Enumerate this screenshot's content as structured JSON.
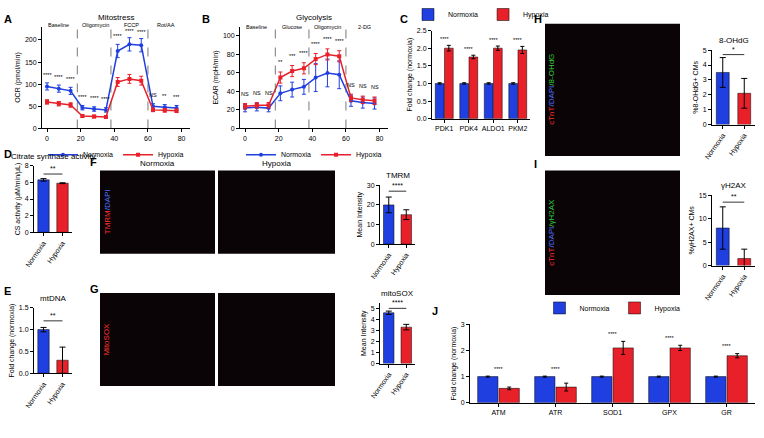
{
  "chart_data": [
    {
      "panel": "A",
      "type": "line",
      "title": "Mitostress",
      "y_label": "OCR (pmol/min)",
      "x": [
        0,
        7,
        14,
        21,
        28,
        35,
        42,
        49,
        56,
        63,
        70,
        77
      ],
      "xlim": [
        -3,
        85
      ],
      "xticks": [
        0,
        20,
        40,
        60,
        80
      ],
      "ylim": [
        0,
        230
      ],
      "yticks": [
        0,
        50,
        100,
        150,
        200
      ],
      "series": [
        {
          "name": "Normoxia",
          "color": "#1f3fe0",
          "marker": "circle",
          "line_style": "solid",
          "values": [
            95,
            90,
            85,
            47,
            44,
            42,
            175,
            190,
            188,
            50,
            48,
            46
          ],
          "errors": [
            8,
            8,
            8,
            5,
            5,
            5,
            15,
            15,
            15,
            6,
            6,
            6
          ]
        },
        {
          "name": "Hypoxia",
          "color": "#e8202a",
          "marker": "square",
          "line_style": "solid",
          "values": [
            60,
            56,
            53,
            28,
            27,
            26,
            105,
            112,
            108,
            42,
            41,
            40
          ],
          "errors": [
            5,
            5,
            5,
            3,
            3,
            3,
            10,
            10,
            10,
            4,
            4,
            4
          ]
        }
      ],
      "vlines": [
        18,
        38,
        60
      ],
      "annotations": [
        {
          "x": 7,
          "y": 222,
          "text": "Baseline"
        },
        {
          "x": 29,
          "y": 222,
          "text": "Oligomycin"
        },
        {
          "x": 50,
          "y": 222,
          "text": "FCCP"
        },
        {
          "x": 71,
          "y": 222,
          "text": "Rot/AA"
        },
        {
          "x": 0,
          "y": 110,
          "text": "****"
        },
        {
          "x": 7,
          "y": 105,
          "text": "****"
        },
        {
          "x": 14,
          "y": 100,
          "text": "****"
        },
        {
          "x": 21,
          "y": 60,
          "text": "****"
        },
        {
          "x": 28,
          "y": 57,
          "text": "****"
        },
        {
          "x": 35,
          "y": 55,
          "text": "****"
        },
        {
          "x": 42,
          "y": 198,
          "text": "****"
        },
        {
          "x": 49,
          "y": 208,
          "text": "****"
        },
        {
          "x": 56,
          "y": 206,
          "text": "****"
        },
        {
          "x": 63,
          "y": 64,
          "text": "NS"
        },
        {
          "x": 70,
          "y": 62,
          "text": "**"
        },
        {
          "x": 77,
          "y": 60,
          "text": "***"
        }
      ],
      "legend": "bottom",
      "grid": false
    },
    {
      "panel": "B",
      "type": "line",
      "title": "Glycolysis",
      "y_label": "ECAR (mpH/min)",
      "x": [
        0,
        7,
        14,
        21,
        28,
        35,
        42,
        49,
        56,
        63,
        70,
        77
      ],
      "xlim": [
        -3,
        85
      ],
      "xticks": [
        0,
        20,
        40,
        60,
        80
      ],
      "ylim": [
        0,
        110
      ],
      "yticks": [
        0,
        20,
        40,
        60,
        80,
        100
      ],
      "series": [
        {
          "name": "Normoxia",
          "color": "#1f3fe0",
          "marker": "circle",
          "line_style": "solid",
          "values": [
            22,
            23,
            22,
            38,
            42,
            45,
            55,
            60,
            58,
            30,
            28,
            27
          ],
          "errors": [
            4,
            4,
            4,
            8,
            8,
            8,
            15,
            15,
            15,
            6,
            6,
            6
          ]
        },
        {
          "name": "Hypoxia",
          "color": "#e8202a",
          "marker": "square",
          "line_style": "solid",
          "values": [
            24,
            25,
            25,
            55,
            62,
            65,
            75,
            80,
            78,
            33,
            31,
            30
          ],
          "errors": [
            3,
            3,
            3,
            6,
            6,
            6,
            6,
            6,
            6,
            4,
            4,
            4
          ]
        }
      ],
      "vlines": [
        18,
        38,
        60
      ],
      "annotations": [
        {
          "x": 7,
          "y": 104,
          "text": "Baseline"
        },
        {
          "x": 28,
          "y": 104,
          "text": "Glucose"
        },
        {
          "x": 49,
          "y": 104,
          "text": "Oligomycin"
        },
        {
          "x": 71,
          "y": 104,
          "text": "2-DG"
        },
        {
          "x": 0,
          "y": 32,
          "text": "NS"
        },
        {
          "x": 7,
          "y": 33,
          "text": "NS"
        },
        {
          "x": 14,
          "y": 33,
          "text": "NS"
        },
        {
          "x": 21,
          "y": 66,
          "text": "**"
        },
        {
          "x": 28,
          "y": 73,
          "text": "***"
        },
        {
          "x": 35,
          "y": 76,
          "text": "****"
        },
        {
          "x": 42,
          "y": 86,
          "text": "****"
        },
        {
          "x": 49,
          "y": 91,
          "text": "****"
        },
        {
          "x": 56,
          "y": 89,
          "text": "****"
        },
        {
          "x": 63,
          "y": 42,
          "text": "NS"
        },
        {
          "x": 70,
          "y": 40,
          "text": "NS"
        },
        {
          "x": 77,
          "y": 39,
          "text": "NS"
        }
      ],
      "legend": "bottom",
      "grid": false
    },
    {
      "panel": "C",
      "type": "bar",
      "y_label": "Fold change (normoxia)",
      "categories": [
        "PDK1",
        "PDK4",
        "ALDO1",
        "PKM2"
      ],
      "ylim": [
        0,
        2.5
      ],
      "yticks": [
        {
          "value": 0,
          "label": "0.0"
        },
        0.5,
        {
          "value": 1,
          "label": "1.0"
        },
        1.5,
        {
          "value": 2,
          "label": "2.0"
        },
        2.5
      ],
      "series": [
        {
          "name": "Normoxia",
          "color": "#1f3fe0",
          "values": [
            1,
            1,
            1,
            1
          ],
          "errors": [
            0.02,
            0.02,
            0.02,
            0.02
          ]
        },
        {
          "name": "Hypoxia",
          "color": "#e8202a",
          "values": [
            2.0,
            1.75,
            2.0,
            1.95
          ],
          "errors": [
            0.08,
            0.05,
            0.06,
            0.1
          ]
        }
      ],
      "annotations": [
        {
          "x": 0,
          "y": 2.12,
          "text": "****"
        },
        {
          "x": 1,
          "y": 1.84,
          "text": "****"
        },
        {
          "x": 2,
          "y": 2.1,
          "text": "****"
        },
        {
          "x": 3,
          "y": 2.1,
          "text": "****"
        }
      ],
      "legend": "top",
      "grid": false
    },
    {
      "panel": "D",
      "type": "bar",
      "title": "Citrate synthase activity",
      "y_label": "CS activity (μM/min/μL)",
      "categories": [
        "Normoxia",
        "Hypoxia"
      ],
      "values": [
        6.3,
        5.9
      ],
      "errors": [
        0.15,
        0.05
      ],
      "colors": [
        "#1f3fe0",
        "#e8202a"
      ],
      "ylim": [
        0,
        8
      ],
      "yticks": [
        0,
        2,
        4,
        6,
        8
      ],
      "significance": {
        "text": "**",
        "y": 7.0
      },
      "grid": false
    },
    {
      "panel": "E",
      "type": "bar",
      "title": "mtDNA",
      "y_label": "Fold change (normoxia)",
      "categories": [
        "Normoxia",
        "Hypoxia"
      ],
      "values": [
        1.0,
        0.3
      ],
      "errors": [
        0.05,
        0.3
      ],
      "colors": [
        "#1f3fe0",
        "#e8202a"
      ],
      "ylim": [
        0,
        1.5
      ],
      "yticks": [
        {
          "value": 0,
          "label": "0.0"
        },
        0.5,
        {
          "value": 1,
          "label": "1.0"
        },
        1.5
      ],
      "significance": {
        "text": "**",
        "y": 1.2
      },
      "grid": false
    },
    {
      "type": "bar",
      "title": "TMRM",
      "y_label": "Mean Intensity",
      "categories": [
        "Normoxia",
        "Hypoxia"
      ],
      "values": [
        20,
        15
      ],
      "errors": [
        4,
        2.5
      ],
      "colors": [
        "#1f3fe0",
        "#e8202a"
      ],
      "ylim": [
        0,
        30
      ],
      "yticks": [
        0,
        10,
        20,
        30
      ],
      "significance": {
        "text": "****",
        "y": 27
      },
      "grid": false
    },
    {
      "type": "bar",
      "title": "mitoSOX",
      "y_label": "Mean Intensity",
      "categories": [
        "Normoxia",
        "Hypoxia"
      ],
      "values": [
        4.6,
        3.3
      ],
      "errors": [
        0.15,
        0.25
      ],
      "colors": [
        "#1f3fe0",
        "#e8202a"
      ],
      "ylim": [
        0,
        5.5
      ],
      "yticks": [
        0,
        1,
        2,
        3,
        4,
        5
      ],
      "significance": {
        "text": "****",
        "y": 5.0
      },
      "grid": false
    },
    {
      "type": "bar",
      "title": "8-OHdG",
      "y_label": "%8-OHdG+ CMs",
      "categories": [
        "Normoxia",
        "Hypoxia"
      ],
      "values": [
        3.5,
        2.1
      ],
      "errors": [
        1.0,
        1.0
      ],
      "colors": [
        "#1f3fe0",
        "#e8202a"
      ],
      "ylim": [
        0,
        5
      ],
      "yticks": [
        0,
        1,
        2,
        3,
        4,
        5
      ],
      "significance": {
        "text": "*",
        "y": 4.7
      },
      "grid": false
    },
    {
      "type": "bar",
      "title": "γH2AX",
      "y_label": "%γH2AX+ CMs",
      "categories": [
        "Normoxia",
        "Hypoxia"
      ],
      "values": [
        8,
        1.5
      ],
      "errors": [
        4.5,
        2.0
      ],
      "colors": [
        "#1f3fe0",
        "#e8202a"
      ],
      "ylim": [
        0,
        15
      ],
      "yticks": [
        0,
        5,
        10,
        15
      ],
      "significance": {
        "text": "**",
        "y": 13.5
      },
      "grid": false
    },
    {
      "panel": "J",
      "type": "bar",
      "y_label": "Fold change (normoxia)",
      "categories": [
        "ATM",
        "ATR",
        "SOD1",
        "GPX",
        "GR"
      ],
      "ylim": [
        0,
        3
      ],
      "yticks": [
        0,
        1,
        2,
        3
      ],
      "series": [
        {
          "name": "Normoxia",
          "color": "#1f3fe0",
          "values": [
            1,
            1,
            1,
            1,
            1
          ],
          "errors": [
            0.02,
            0.02,
            0.02,
            0.02,
            0.02
          ]
        },
        {
          "name": "Hypoxia",
          "color": "#e8202a",
          "values": [
            0.55,
            0.6,
            2.1,
            2.1,
            1.8
          ],
          "errors": [
            0.05,
            0.15,
            0.25,
            0.1,
            0.08
          ]
        }
      ],
      "annotations": [
        {
          "x": 0,
          "y": 1.1,
          "text": "****"
        },
        {
          "x": 1,
          "y": 1.1,
          "text": "****"
        },
        {
          "x": 2,
          "y": 2.45,
          "text": "****"
        },
        {
          "x": 3,
          "y": 2.3,
          "text": "****"
        },
        {
          "x": 4,
          "y": 2.0,
          "text": "****"
        }
      ],
      "legend": "top",
      "grid": false
    }
  ],
  "images": [
    {
      "panel": "F",
      "headers": [
        "Normoxia",
        "Hypoxia"
      ],
      "stain": [
        {
          "text": "TMRM",
          "color": "#ff3030"
        },
        {
          "text": "/DAPI",
          "color": "#5070ff"
        }
      ]
    },
    {
      "panel": "G",
      "headers": [
        null,
        null
      ],
      "stain": [
        {
          "text": "MitoSOX",
          "color": "#ff3030"
        }
      ]
    },
    {
      "panel": "H",
      "headers": [
        null
      ],
      "stain": [
        {
          "text": "cTnT",
          "color": "#ff3030"
        },
        {
          "text": "/DAPI",
          "color": "#5070ff"
        },
        {
          "text": "/8-OHdG",
          "color": "#30d040"
        }
      ]
    },
    {
      "panel": "I",
      "headers": [
        null
      ],
      "stain": [
        {
          "text": "cTnT",
          "color": "#ff3030"
        },
        {
          "text": "/DAPI",
          "color": "#5070ff"
        },
        {
          "text": "/γH2AX",
          "color": "#30d040"
        }
      ]
    }
  ]
}
